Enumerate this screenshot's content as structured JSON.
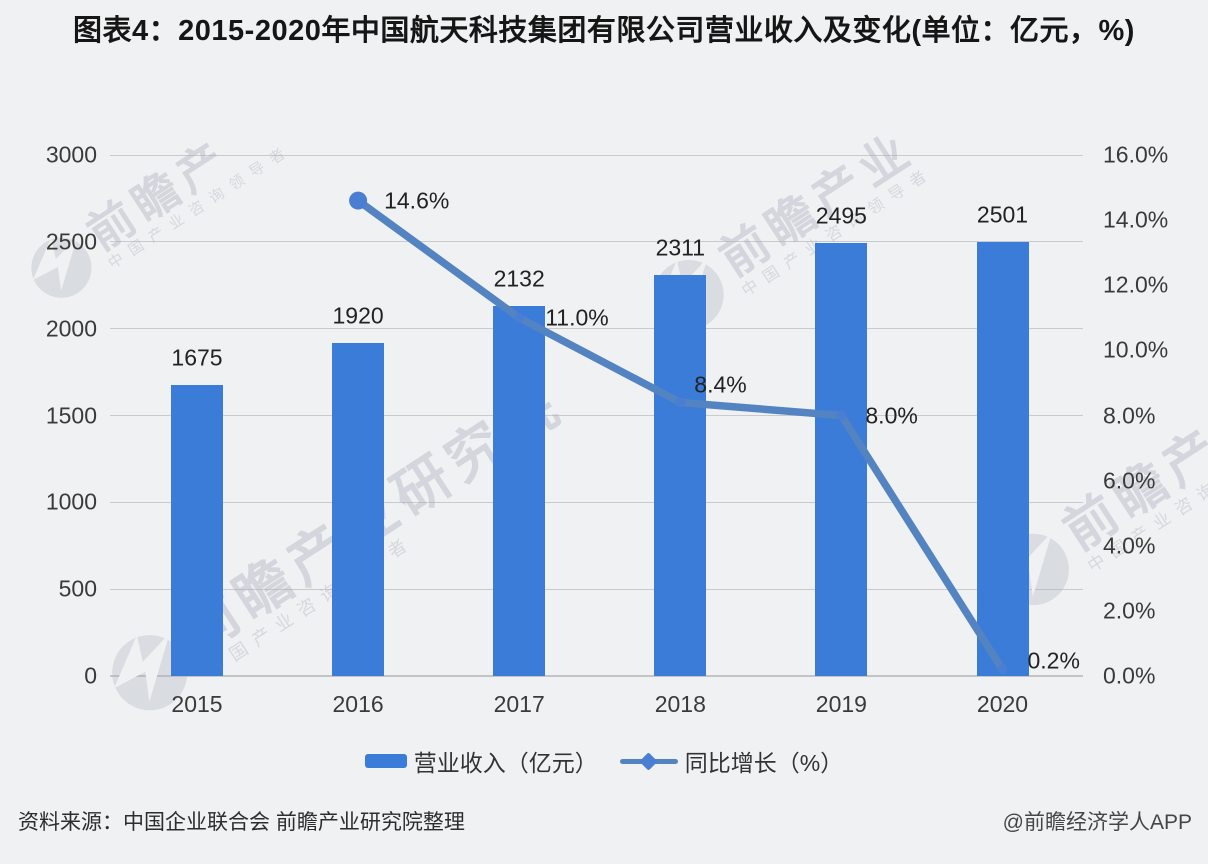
{
  "title": "图表4：2015-2020年中国航天科技集团有限公司营业收入及变化(单位：亿元，%)",
  "chart_data": {
    "type": "bar+line",
    "categories": [
      "2015",
      "2016",
      "2017",
      "2018",
      "2019",
      "2020"
    ],
    "series": [
      {
        "name": "营业收入（亿元）",
        "type": "bar",
        "axis": "left",
        "values": [
          1675,
          1920,
          2132,
          2311,
          2495,
          2501
        ],
        "labels": [
          "1675",
          "1920",
          "2132",
          "2311",
          "2495",
          "2501"
        ],
        "color": "#3b7cd8"
      },
      {
        "name": "同比增长（%）",
        "type": "line",
        "axis": "right",
        "values": [
          null,
          14.6,
          11.0,
          8.4,
          8.0,
          0.2
        ],
        "labels": [
          "14.6%",
          "11.0%",
          "8.4%",
          "8.0%",
          "0.2%"
        ],
        "color": "#5483c2",
        "marker_color": "#4a7ed2"
      }
    ],
    "left_axis": {
      "min": 0,
      "max": 3000,
      "ticks": [
        "3000",
        "2500",
        "2000",
        "1500",
        "1000",
        "500",
        "0"
      ]
    },
    "right_axis": {
      "min": 0,
      "max": 16,
      "ticks": [
        "16.0%",
        "14.0%",
        "12.0%",
        "10.0%",
        "8.0%",
        "6.0%",
        "4.0%",
        "2.0%",
        "0.0%"
      ]
    },
    "grid": true,
    "legend_position": "bottom"
  },
  "legend": {
    "items": [
      {
        "label": "营业收入（亿元）",
        "marker": "bar"
      },
      {
        "label": "同比增长（%）",
        "marker": "line"
      }
    ]
  },
  "footer": {
    "source": "资料来源：中国企业联合会 前瞻产业研究院整理",
    "credit": "@前瞻经济学人APP"
  },
  "watermark": {
    "brand_full": "前瞻产业研究院",
    "brand_medium": "前瞻产业",
    "brand_short": "前瞻产",
    "tagline": "中国产业咨询领导者"
  },
  "colors": {
    "background": "#f0f1f2",
    "bar": "#3b7cd8",
    "line": "#5483c2",
    "grid": "#c9cacc"
  }
}
